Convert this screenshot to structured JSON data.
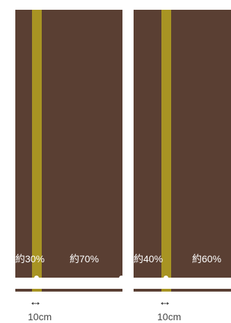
{
  "colors": {
    "fabric": "#5a3f33",
    "stripe": "#a89423",
    "marker": "#ffffff"
  },
  "panels": [
    {
      "left_label": "約30%",
      "right_label": "約70%",
      "width_label": "10cm"
    },
    {
      "left_label": "約40%",
      "right_label": "約60%",
      "width_label": "10cm"
    }
  ]
}
